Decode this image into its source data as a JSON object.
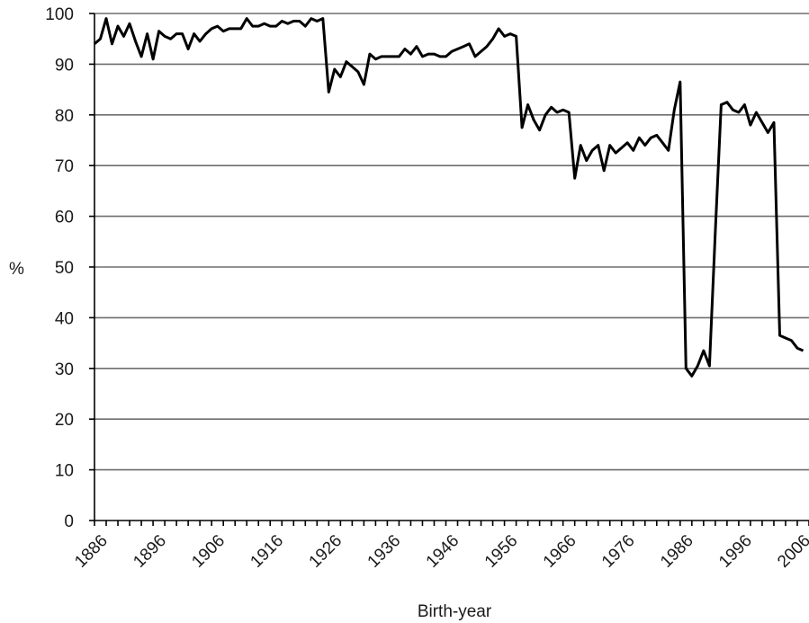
{
  "chart_data": {
    "type": "line",
    "xlabel": "Birth-year",
    "ylabel": "%",
    "xlim": [
      1886,
      2008
    ],
    "ylim": [
      0,
      100
    ],
    "y_ticks": [
      0,
      10,
      20,
      30,
      40,
      50,
      60,
      70,
      80,
      90,
      100
    ],
    "x_ticks": [
      1886,
      1896,
      1906,
      1916,
      1926,
      1936,
      1946,
      1956,
      1966,
      1976,
      1986,
      1996,
      2006
    ],
    "grid": "horizontal",
    "legend": "none",
    "colors": {
      "series": "#000000",
      "grid": "#6e6e6e"
    },
    "series": [
      {
        "x": [
          1886,
          1887,
          1888,
          1889,
          1890,
          1891,
          1892,
          1893,
          1894,
          1895,
          1896,
          1897,
          1898,
          1899,
          1900,
          1901,
          1902,
          1903,
          1904,
          1905,
          1906,
          1907,
          1908,
          1909,
          1910,
          1911,
          1912,
          1913,
          1914,
          1915,
          1916,
          1917,
          1918,
          1919,
          1920,
          1921,
          1922,
          1923,
          1924,
          1925,
          1926,
          1927,
          1928,
          1929,
          1930,
          1931,
          1932,
          1933,
          1934,
          1935,
          1936,
          1937,
          1938,
          1939,
          1940,
          1941,
          1942,
          1943,
          1944,
          1945,
          1946,
          1947,
          1948,
          1949,
          1950,
          1951,
          1952,
          1953,
          1954,
          1955,
          1956,
          1957,
          1958,
          1959,
          1960,
          1961,
          1962,
          1963,
          1964,
          1965,
          1966,
          1967,
          1968,
          1969,
          1970,
          1971,
          1972,
          1973,
          1974,
          1975,
          1976,
          1977,
          1978,
          1979,
          1980,
          1981,
          1982,
          1983,
          1984,
          1985,
          1986,
          1987,
          1988,
          1989,
          1990,
          1991,
          1992,
          1993,
          1994,
          1995,
          1996,
          1997,
          1998,
          1999,
          2000,
          2001,
          2002,
          2003,
          2004,
          2005,
          2006,
          2007
        ],
        "values": [
          94,
          95,
          99,
          94,
          97.5,
          95.5,
          98,
          94.5,
          91.5,
          96,
          91,
          96.5,
          95.5,
          95,
          96,
          96,
          93,
          96,
          94.5,
          96,
          97,
          97.5,
          96.5,
          97,
          97,
          97,
          99,
          97.5,
          97.5,
          98,
          97.5,
          97.5,
          98.5,
          98,
          98.5,
          98.5,
          97.5,
          99,
          98.5,
          99,
          84.5,
          89,
          87.5,
          90.5,
          89.5,
          88.5,
          86,
          92,
          91,
          91.5,
          91.5,
          91.5,
          91.5,
          93,
          92,
          93.5,
          91.5,
          92,
          92,
          91.5,
          91.5,
          92.5,
          93,
          93.5,
          94,
          91.5,
          92.5,
          93.5,
          95,
          97,
          95.5,
          96,
          95.5,
          77.5,
          82,
          79,
          77,
          80,
          81.5,
          80.5,
          81,
          80.5,
          67.5,
          74,
          71,
          73,
          74,
          69,
          74,
          72.5,
          73.5,
          74.5,
          73,
          75.5,
          74,
          75.5,
          76,
          74.5,
          73,
          81,
          86.5,
          30,
          28.5,
          30.5,
          33.5,
          30.5,
          57,
          82,
          82.5,
          81,
          80.5,
          82,
          78,
          80.5,
          78.5,
          76.5,
          78.5,
          36.5,
          36,
          35.5,
          34,
          33.5
        ]
      }
    ]
  }
}
